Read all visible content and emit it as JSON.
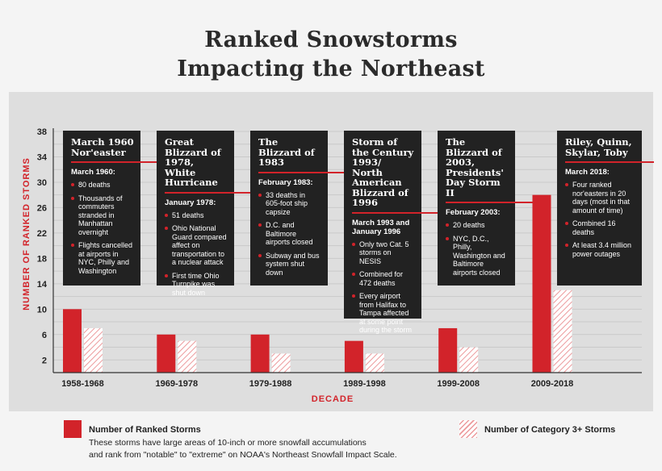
{
  "title_line1": "Ranked Snowstorms",
  "title_line2": "Impacting the Northeast",
  "chart_data": {
    "type": "bar",
    "xlabel": "DECADE",
    "ylabel": "NUMBER OF RANKED STORMS",
    "ylim": [
      0,
      38
    ],
    "yticks": [
      2,
      6,
      10,
      14,
      18,
      22,
      26,
      30,
      34,
      38
    ],
    "grid": true,
    "categories": [
      "1958-1968",
      "1969-1978",
      "1979-1988",
      "1989-1998",
      "1999-2008",
      "2009-2018"
    ],
    "series": [
      {
        "name": "Number of Ranked Storms",
        "values": [
          10,
          6,
          6,
          5,
          7,
          28
        ],
        "color": "#d2232a",
        "style": "solid"
      },
      {
        "name": "Number of Category 3+ Storms",
        "values": [
          7,
          5,
          3,
          3,
          4,
          13
        ],
        "color": "#ec9a9c",
        "style": "hatched"
      }
    ]
  },
  "boxes": [
    {
      "title": "March 1960 Nor'easter",
      "date": "March 1960:",
      "bullets": [
        "80 deaths",
        "Thousands of commuters stranded in Manhattan overnight",
        "Flights cancelled at airports in NYC, Philly and Washington"
      ]
    },
    {
      "title": "Great Blizzard of 1978, White Hurricane",
      "date": "January 1978:",
      "bullets": [
        "51 deaths",
        "Ohio National Guard compared affect on transportation to a nuclear attack",
        "First time Ohio Turnpike was shut down"
      ]
    },
    {
      "title": "The Blizzard of 1983",
      "date": "February 1983:",
      "bullets": [
        "33 deaths in 605-foot ship capsize",
        "D.C. and Baltimore airports closed",
        "Subway and bus system shut down"
      ]
    },
    {
      "title": "Storm of the Century 1993/ North American Blizzard of 1996",
      "date": "March 1993 and January 1996",
      "bullets": [
        "Only two Cat. 5 storms on NESIS",
        "Combined for 472 deaths",
        "Every airport from Halifax to Tampa affected at some point during the storm"
      ]
    },
    {
      "title": "The Blizzard of 2003, Presidents' Day Storm II",
      "date": "February 2003:",
      "bullets": [
        "20 deaths",
        "NYC, D.C., Philly, Washington and Baltimore airports closed"
      ]
    },
    {
      "title": "Riley, Quinn, Skylar, Toby",
      "date": "March 2018:",
      "bullets": [
        "Four ranked nor'easters in 20 days (most in that amount of time)",
        "Combined 16 deaths",
        "At least 3.4 million power outages"
      ]
    }
  ],
  "legend": {
    "ranked_label": "Number of Ranked Storms",
    "ranked_desc_line1": "These storms have large areas of 10-inch or more snowfall accumulations",
    "ranked_desc_line2": "and rank from \"notable\" to \"extreme\" on NOAA's Northeast Snowfall Impact Scale.",
    "cat3_label": "Number of Category 3+ Storms"
  }
}
